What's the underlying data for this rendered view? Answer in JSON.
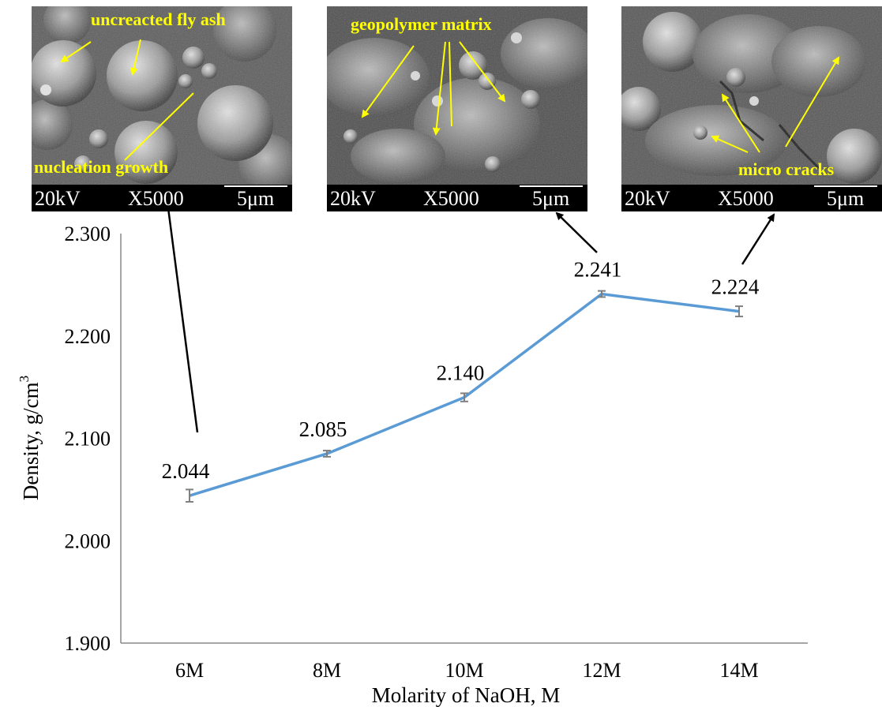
{
  "chart_data": {
    "type": "line",
    "categories": [
      "6M",
      "8M",
      "10M",
      "12M",
      "14M"
    ],
    "values": [
      2.044,
      2.085,
      2.14,
      2.241,
      2.224
    ],
    "errors": [
      0.006,
      0.003,
      0.004,
      0.003,
      0.005
    ],
    "data_labels": [
      "2.044",
      "2.085",
      "2.140",
      "2.241",
      "2.224"
    ],
    "xlabel": "Molarity of NaOH, M",
    "ylabel": "Density, g/cm",
    "ylabel_superscript": "3",
    "ylim": [
      1.9,
      2.3
    ],
    "yticks": [
      "1.900",
      "2.000",
      "2.100",
      "2.200",
      "2.300"
    ],
    "grid": false,
    "line_color": "#5b9bd5",
    "error_bar_color": "#7f7f7f"
  },
  "micrographs": [
    {
      "annotations": [
        "uncreacted fly ash",
        "nucleation growth"
      ],
      "scale_bar": {
        "voltage": "20kV",
        "magnification": "X5000",
        "scale": "5μm"
      },
      "points_to": "6M"
    },
    {
      "annotations": [
        "geopolymer matrix"
      ],
      "scale_bar": {
        "voltage": "20kV",
        "magnification": "X5000",
        "scale": "5μm"
      },
      "points_to": "12M"
    },
    {
      "annotations": [
        "micro cracks"
      ],
      "scale_bar": {
        "voltage": "20kV",
        "magnification": "X5000",
        "scale": "5μm"
      },
      "points_to": "14M"
    }
  ],
  "colors": {
    "annotation_text": "#ffff00",
    "annotation_arrow": "#ffff00",
    "pointer_arrow": "#000000"
  }
}
